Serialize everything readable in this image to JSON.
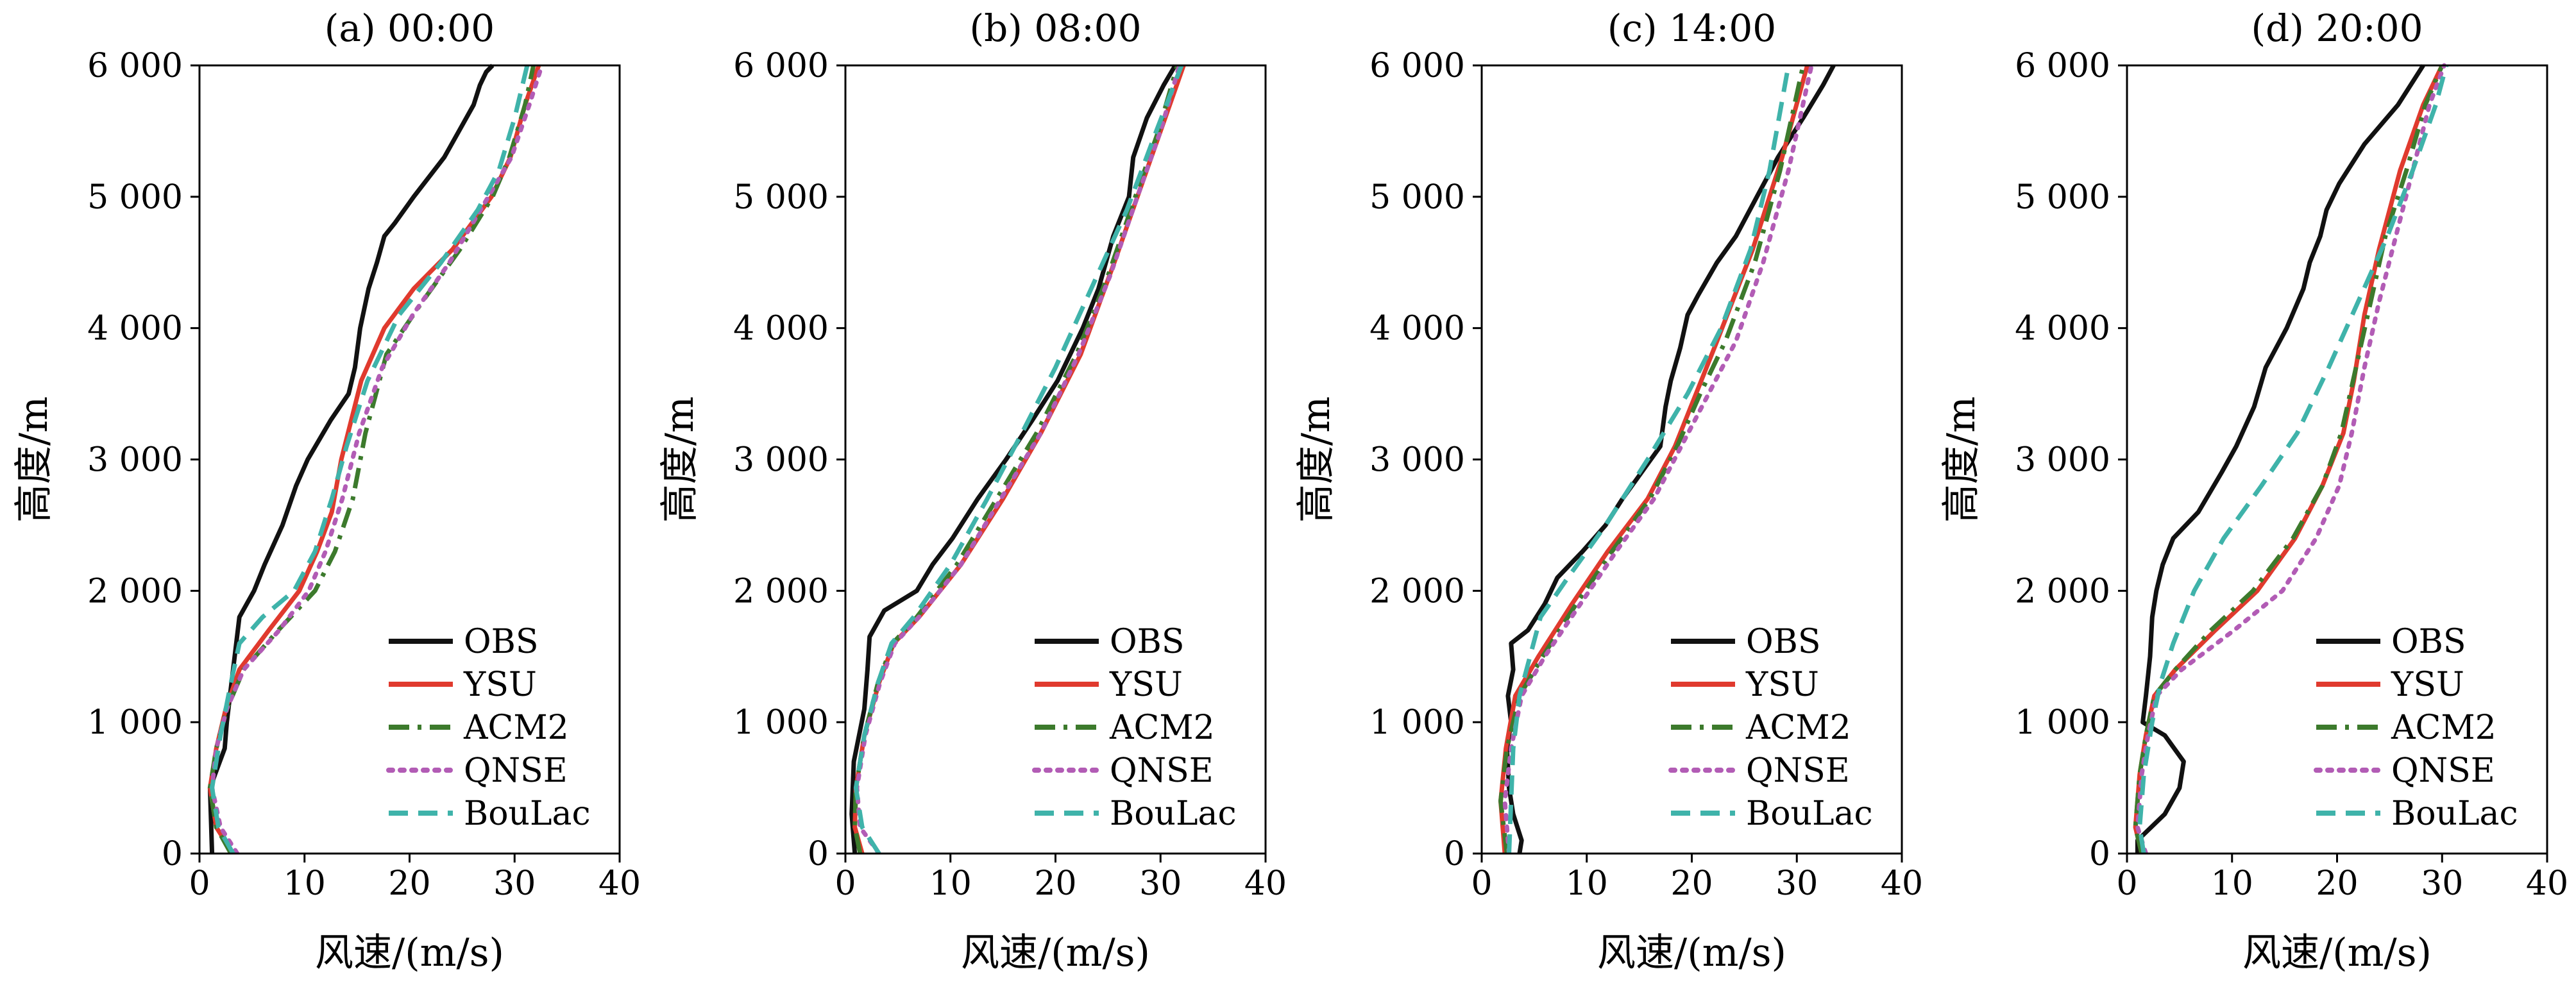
{
  "chart_data": [
    {
      "type": "line",
      "title": "(a) 00:00",
      "xlabel": "风速/(m/s)",
      "ylabel": "高度/m",
      "xlim": [
        0,
        40
      ],
      "ylim": [
        0,
        6000
      ],
      "xticks": [
        0,
        10,
        20,
        30,
        40
      ],
      "yticks": [
        0,
        1000,
        2000,
        3000,
        4000,
        5000,
        6000
      ],
      "xtick_labels": [
        "0",
        "10",
        "20",
        "30",
        "40"
      ],
      "ytick_labels": [
        "0",
        "1 000",
        "2 000",
        "3 000",
        "4 000",
        "5 000",
        "6 000"
      ],
      "legend_position": "lower-right",
      "series": [
        {
          "name": "OBS",
          "color": "#111111",
          "style": "solid",
          "x": [
            1.2,
            1.0,
            2.4,
            2.6,
            3.2,
            3.8,
            5.2,
            6.2,
            7.9,
            9.2,
            10.3,
            12.5,
            14.2,
            14.8,
            15.3,
            16.1,
            16.9,
            17.6,
            18.6,
            20.4,
            23.3,
            24.7,
            26.1,
            26.7,
            27.3,
            27.9
          ],
          "y": [
            0,
            500,
            800,
            1000,
            1400,
            1800,
            2000,
            2200,
            2500,
            2800,
            3000,
            3300,
            3500,
            3700,
            4000,
            4300,
            4500,
            4700,
            4800,
            5000,
            5300,
            5500,
            5700,
            5850,
            5950,
            6000
          ]
        },
        {
          "name": "YSU",
          "color": "#e03a2e",
          "style": "solid",
          "x": [
            3.2,
            1.6,
            1.0,
            1.6,
            2.5,
            3.8,
            6.6,
            9.5,
            11.2,
            12.6,
            13.5,
            15.4,
            17.6,
            20.4,
            24.1,
            27.8,
            29.6,
            31.0,
            32.3
          ],
          "y": [
            0,
            200,
            500,
            800,
            1100,
            1400,
            1700,
            2000,
            2300,
            2600,
            3000,
            3600,
            4000,
            4300,
            4600,
            5000,
            5300,
            5700,
            6000
          ]
        },
        {
          "name": "ACM2",
          "color": "#3c7a2c",
          "style": "dashdot",
          "x": [
            3.0,
            1.6,
            1.0,
            1.6,
            2.6,
            4.2,
            7.5,
            11.0,
            12.9,
            14.6,
            15.8,
            17.8,
            21.2,
            24.8,
            27.9,
            29.5,
            31.0,
            31.8
          ],
          "y": [
            0,
            200,
            500,
            800,
            1100,
            1400,
            1700,
            2000,
            2300,
            2700,
            3200,
            3800,
            4200,
            4600,
            5000,
            5300,
            5700,
            6000
          ]
        },
        {
          "name": "QNSE",
          "color": "#b25cb5",
          "style": "dotted",
          "x": [
            3.6,
            2.0,
            1.2,
            1.6,
            2.6,
            4.2,
            7.6,
            10.4,
            12.0,
            13.6,
            15.2,
            17.4,
            20.3,
            23.8,
            27.5,
            29.7,
            31.4,
            32.6
          ],
          "y": [
            0,
            200,
            500,
            800,
            1100,
            1400,
            1700,
            2000,
            2300,
            2700,
            3200,
            3700,
            4100,
            4500,
            5000,
            5300,
            5700,
            6000
          ]
        },
        {
          "name": "BouLac",
          "color": "#3fb3aa",
          "style": "dashed",
          "x": [
            3.2,
            1.8,
            1.2,
            2.0,
            3.0,
            3.8,
            6.0,
            9.0,
            11.0,
            12.6,
            14.0,
            16.0,
            19.0,
            23.0,
            26.5,
            28.5,
            30.0,
            31.2
          ],
          "y": [
            0,
            200,
            500,
            900,
            1300,
            1600,
            1800,
            2000,
            2300,
            2700,
            3100,
            3600,
            4100,
            4500,
            4900,
            5200,
            5600,
            6000
          ]
        }
      ]
    },
    {
      "type": "line",
      "title": "(b) 08:00",
      "xlabel": "风速/(m/s)",
      "ylabel": "高度/m",
      "xlim": [
        0,
        40
      ],
      "ylim": [
        0,
        6000
      ],
      "xticks": [
        0,
        10,
        20,
        30,
        40
      ],
      "yticks": [
        0,
        1000,
        2000,
        3000,
        4000,
        5000,
        6000
      ],
      "xtick_labels": [
        "0",
        "10",
        "20",
        "30",
        "40"
      ],
      "ytick_labels": [
        "0",
        "1 000",
        "2 000",
        "3 000",
        "4 000",
        "5 000",
        "6 000"
      ],
      "legend_position": "lower-right",
      "series": [
        {
          "name": "OBS",
          "color": "#111111",
          "style": "solid",
          "x": [
            0.9,
            0.6,
            0.8,
            1.3,
            1.8,
            2.1,
            2.3,
            3.7,
            6.8,
            8.3,
            10.2,
            12.6,
            15.3,
            17.8,
            20.2,
            22.6,
            24.1,
            25.5,
            27.0,
            27.4,
            28.7,
            30.3,
            31.4
          ],
          "y": [
            0,
            300,
            700,
            900,
            1100,
            1400,
            1650,
            1850,
            2000,
            2200,
            2400,
            2700,
            3000,
            3300,
            3600,
            4000,
            4300,
            4700,
            5000,
            5300,
            5600,
            5850,
            6000
          ]
        },
        {
          "name": "YSU",
          "color": "#e03a2e",
          "style": "solid",
          "x": [
            1.6,
            0.9,
            1.0,
            1.8,
            3.2,
            4.6,
            7.0,
            11.0,
            15.0,
            18.6,
            22.4,
            25.6,
            27.8,
            30.0,
            32.2
          ],
          "y": [
            0,
            200,
            500,
            900,
            1300,
            1600,
            1800,
            2200,
            2700,
            3200,
            3800,
            4500,
            5000,
            5500,
            6000
          ]
        },
        {
          "name": "ACM2",
          "color": "#3c7a2c",
          "style": "dashdot",
          "x": [
            1.4,
            0.9,
            1.0,
            1.8,
            3.1,
            4.5,
            6.8,
            10.6,
            14.4,
            18.2,
            22.0,
            25.0,
            27.6,
            29.8,
            31.6
          ],
          "y": [
            0,
            200,
            500,
            900,
            1300,
            1600,
            1800,
            2200,
            2700,
            3200,
            3800,
            4400,
            5000,
            5500,
            6000
          ]
        },
        {
          "name": "QNSE",
          "color": "#b25cb5",
          "style": "dotted",
          "x": [
            3.2,
            1.4,
            1.1,
            1.9,
            3.3,
            4.7,
            7.0,
            11.0,
            14.8,
            18.6,
            22.2,
            25.2,
            27.8,
            30.0,
            31.8
          ],
          "y": [
            0,
            200,
            500,
            900,
            1300,
            1600,
            1800,
            2200,
            2700,
            3200,
            3800,
            4400,
            5000,
            5500,
            6000
          ]
        },
        {
          "name": "BouLac",
          "color": "#3fb3aa",
          "style": "dashed",
          "x": [
            3.2,
            1.6,
            1.0,
            1.8,
            3.1,
            4.4,
            6.5,
            10.0,
            13.5,
            16.8,
            20.0,
            23.4,
            26.8,
            29.6,
            32.0
          ],
          "y": [
            0,
            200,
            500,
            900,
            1300,
            1600,
            1800,
            2200,
            2700,
            3200,
            3700,
            4300,
            4900,
            5500,
            6000
          ]
        }
      ]
    },
    {
      "type": "line",
      "title": "(c) 14:00",
      "xlabel": "风速/(m/s)",
      "ylabel": "高度/m",
      "xlim": [
        0,
        40
      ],
      "ylim": [
        0,
        6000
      ],
      "xticks": [
        0,
        10,
        20,
        30,
        40
      ],
      "yticks": [
        0,
        1000,
        2000,
        3000,
        4000,
        5000,
        6000
      ],
      "xtick_labels": [
        "0",
        "10",
        "20",
        "30",
        "40"
      ],
      "ytick_labels": [
        "0",
        "1 000",
        "2 000",
        "3 000",
        "4 000",
        "5 000",
        "6 000"
      ],
      "legend_position": "lower-right",
      "series": [
        {
          "name": "OBS",
          "color": "#111111",
          "style": "solid",
          "x": [
            3.6,
            3.8,
            3.0,
            2.6,
            2.4,
            2.8,
            2.5,
            3.0,
            2.8,
            4.4,
            6.0,
            7.2,
            9.6,
            11.8,
            13.4,
            15.2,
            17.0,
            17.5,
            18.0,
            18.9,
            19.6,
            20.6,
            22.4,
            24.2,
            26.2,
            28.2,
            30.6,
            32.5,
            33.5
          ],
          "y": [
            0,
            100,
            300,
            500,
            800,
            1000,
            1200,
            1400,
            1600,
            1700,
            1900,
            2100,
            2300,
            2500,
            2700,
            2900,
            3100,
            3400,
            3600,
            3850,
            4100,
            4250,
            4500,
            4700,
            5000,
            5300,
            5600,
            5850,
            6000
          ]
        },
        {
          "name": "YSU",
          "color": "#e03a2e",
          "style": "solid",
          "x": [
            2.2,
            1.8,
            2.3,
            3.2,
            5.4,
            8.6,
            12.0,
            15.8,
            18.4,
            20.4,
            22.4,
            25.8,
            28.6,
            31.0
          ],
          "y": [
            0,
            400,
            800,
            1200,
            1500,
            1900,
            2300,
            2700,
            3100,
            3500,
            3900,
            4600,
            5300,
            6000
          ]
        },
        {
          "name": "ACM2",
          "color": "#3c7a2c",
          "style": "dashdot",
          "x": [
            2.4,
            1.8,
            2.4,
            3.6,
            5.8,
            9.0,
            12.4,
            16.0,
            18.6,
            20.8,
            23.2,
            26.0,
            28.4,
            30.6
          ],
          "y": [
            0,
            400,
            800,
            1200,
            1500,
            1900,
            2300,
            2700,
            3100,
            3500,
            3900,
            4500,
            5200,
            6000
          ]
        },
        {
          "name": "QNSE",
          "color": "#b25cb5",
          "style": "dotted",
          "x": [
            2.6,
            2.2,
            2.8,
            3.8,
            6.0,
            9.4,
            12.8,
            16.4,
            19.0,
            21.6,
            24.2,
            26.8,
            29.2,
            31.4
          ],
          "y": [
            0,
            400,
            800,
            1200,
            1500,
            1900,
            2300,
            2700,
            3100,
            3500,
            3900,
            4500,
            5200,
            6000
          ]
        },
        {
          "name": "BouLac",
          "color": "#3fb3aa",
          "style": "dashed",
          "x": [
            2.6,
            2.8,
            3.0,
            3.6,
            4.6,
            5.6,
            8.2,
            11.8,
            15.8,
            19.6,
            22.8,
            25.6,
            27.4,
            29.2
          ],
          "y": [
            0,
            400,
            800,
            1200,
            1500,
            1800,
            2100,
            2500,
            3000,
            3500,
            4000,
            4600,
            5200,
            6000
          ]
        }
      ]
    },
    {
      "type": "line",
      "title": "(d) 20:00",
      "xlabel": "风速/(m/s)",
      "ylabel": "高度/m",
      "xlim": [
        0,
        40
      ],
      "ylim": [
        0,
        6000
      ],
      "xticks": [
        0,
        10,
        20,
        30,
        40
      ],
      "yticks": [
        0,
        1000,
        2000,
        3000,
        4000,
        5000,
        6000
      ],
      "xtick_labels": [
        "0",
        "10",
        "20",
        "30",
        "40"
      ],
      "ytick_labels": [
        "0",
        "1 000",
        "2 000",
        "3 000",
        "4 000",
        "5 000",
        "6 000"
      ],
      "legend_position": "lower-right",
      "series": [
        {
          "name": "OBS",
          "color": "#111111",
          "style": "solid",
          "x": [
            1.0,
            1.0,
            3.6,
            5.0,
            5.4,
            3.6,
            1.5,
            1.8,
            2.2,
            2.4,
            2.8,
            3.4,
            4.4,
            6.8,
            9.0,
            10.4,
            12.1,
            13.2,
            15.2,
            16.8,
            17.4,
            18.4,
            19.0,
            20.2,
            22.6,
            25.8,
            28.2
          ],
          "y": [
            0,
            100,
            300,
            500,
            700,
            900,
            1000,
            1200,
            1500,
            1800,
            2000,
            2200,
            2400,
            2600,
            2900,
            3100,
            3400,
            3700,
            4000,
            4300,
            4500,
            4700,
            4900,
            5100,
            5400,
            5700,
            6000
          ]
        },
        {
          "name": "YSU",
          "color": "#e03a2e",
          "style": "solid",
          "x": [
            1.4,
            0.8,
            1.2,
            1.8,
            2.6,
            4.6,
            8.4,
            12.4,
            16.0,
            18.6,
            20.6,
            21.6,
            22.6,
            24.0,
            26.0,
            28.2,
            30.0
          ],
          "y": [
            0,
            200,
            600,
            900,
            1200,
            1400,
            1700,
            2000,
            2400,
            2800,
            3200,
            3600,
            4100,
            4600,
            5200,
            5700,
            6000
          ]
        },
        {
          "name": "ACM2",
          "color": "#3c7a2c",
          "style": "dashdot",
          "x": [
            1.4,
            0.8,
            1.2,
            1.8,
            2.6,
            4.6,
            8.0,
            12.0,
            15.8,
            18.6,
            20.4,
            21.8,
            23.2,
            24.6,
            26.6,
            28.4,
            30.0
          ],
          "y": [
            0,
            200,
            600,
            900,
            1200,
            1400,
            1700,
            2000,
            2400,
            2800,
            3200,
            3700,
            4200,
            4700,
            5200,
            5700,
            6000
          ]
        },
        {
          "name": "QNSE",
          "color": "#b25cb5",
          "style": "dotted",
          "x": [
            1.8,
            1.0,
            1.4,
            2.0,
            2.8,
            5.2,
            10.2,
            14.8,
            18.0,
            20.2,
            21.4,
            22.6,
            24.0,
            25.6,
            27.2,
            28.8,
            30.2
          ],
          "y": [
            0,
            200,
            600,
            900,
            1200,
            1400,
            1700,
            2000,
            2400,
            2800,
            3200,
            3700,
            4200,
            4700,
            5200,
            5700,
            6000
          ]
        },
        {
          "name": "BouLac",
          "color": "#3fb3aa",
          "style": "dashed",
          "x": [
            1.6,
            1.2,
            1.6,
            2.4,
            3.2,
            4.4,
            6.4,
            9.2,
            12.8,
            16.2,
            19.2,
            22.0,
            24.8,
            27.2,
            29.4,
            30.4
          ],
          "y": [
            0,
            200,
            600,
            1000,
            1300,
            1600,
            2000,
            2400,
            2800,
            3200,
            3700,
            4200,
            4700,
            5200,
            5700,
            6000
          ]
        }
      ]
    }
  ]
}
